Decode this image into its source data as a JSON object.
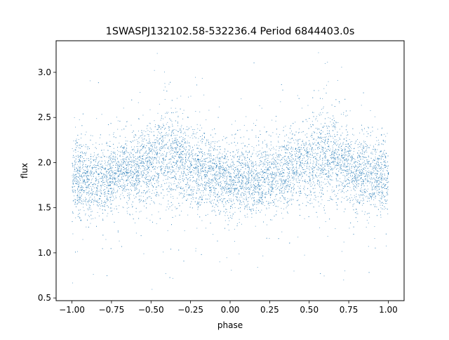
{
  "chart_data": {
    "type": "scatter",
    "title": "1SWASPJ132102.58-532236.4 Period 6844403.0s",
    "xlabel": "phase",
    "ylabel": "flux",
    "xlim": [
      -1.1,
      1.1
    ],
    "ylim": [
      0.47,
      3.35
    ],
    "x_ticks": [
      -1.0,
      -0.75,
      -0.5,
      -0.25,
      0.0,
      0.25,
      0.5,
      0.75,
      1.0
    ],
    "x_tick_labels": [
      "−1.00",
      "−0.75",
      "−0.50",
      "−0.25",
      "0.00",
      "0.25",
      "0.50",
      "0.75",
      "1.00"
    ],
    "y_ticks": [
      0.5,
      1.0,
      1.5,
      2.0,
      2.5,
      3.0
    ],
    "y_tick_labels": [
      "0.5",
      "1.0",
      "1.5",
      "2.0",
      "2.5",
      "3.0"
    ],
    "grid": false,
    "legend": "none",
    "marker_color": "#1f77b4",
    "series": [
      {
        "phase_profile": {
          "phase": [
            -1.0,
            -0.9,
            -0.8,
            -0.7,
            -0.6,
            -0.5,
            -0.4,
            -0.3,
            -0.2,
            -0.1,
            0.0,
            0.1,
            0.2,
            0.3,
            0.4,
            0.5,
            0.6,
            0.7,
            0.8,
            0.9,
            1.0
          ],
          "median_flux": [
            1.85,
            1.8,
            1.82,
            1.9,
            1.95,
            2.0,
            2.1,
            2.0,
            1.9,
            1.85,
            1.82,
            1.8,
            1.82,
            1.9,
            1.95,
            2.0,
            2.1,
            2.0,
            1.9,
            1.85,
            1.85
          ],
          "spread": [
            0.2,
            0.2,
            0.2,
            0.2,
            0.2,
            0.22,
            0.28,
            0.22,
            0.2,
            0.2,
            0.2,
            0.2,
            0.2,
            0.2,
            0.2,
            0.22,
            0.28,
            0.22,
            0.2,
            0.2,
            0.2
          ]
        }
      }
    ]
  }
}
